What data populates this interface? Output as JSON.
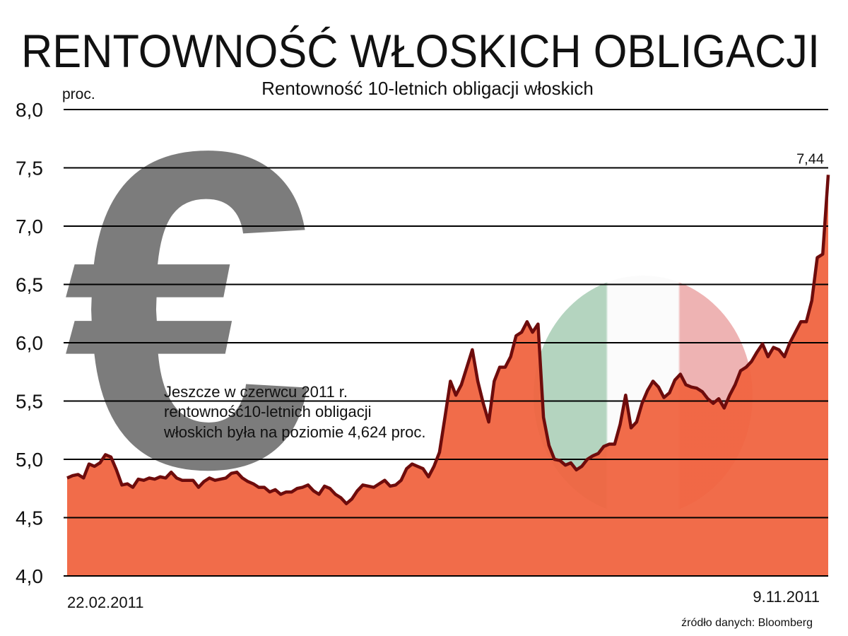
{
  "chart_data": {
    "type": "area",
    "title": "RENTOWNOŚĆ WŁOSKICH OBLIGACJI",
    "subtitle": "Rentowność 10-letnich obligacji włoskich",
    "y_label": "proc.",
    "annotation": [
      "Jeszcze w czerwcu 2011 r.",
      "rentowność10-letnich obligacji",
      "włoskich była na poziomie 4,624 proc."
    ],
    "source": "źródło danych: Bloomberg",
    "categories": [
      "22.02.2011",
      null,
      null,
      null,
      null,
      null,
      null,
      null,
      null,
      null,
      null,
      null,
      null,
      null,
      null,
      null,
      null,
      null,
      null,
      null,
      null,
      null,
      null,
      null,
      null,
      null,
      null,
      null,
      null,
      null,
      null,
      null,
      null,
      null,
      null,
      null,
      null,
      null,
      null,
      null,
      null,
      null,
      null,
      null,
      null,
      null,
      null,
      null,
      null,
      null,
      null,
      null,
      null,
      null,
      null,
      null,
      null,
      null,
      null,
      null,
      null,
      null,
      null,
      null,
      null,
      null,
      null,
      null,
      null,
      null,
      null,
      null,
      null,
      null,
      null,
      null,
      null,
      null,
      null,
      null,
      null,
      null,
      null,
      null,
      null,
      null,
      null,
      null,
      null,
      null,
      null,
      null,
      null,
      null,
      null,
      null,
      null,
      null,
      null,
      null,
      null,
      null,
      null,
      null,
      null,
      null,
      null,
      null,
      null,
      null,
      null,
      null,
      null,
      null,
      null,
      null,
      null,
      null,
      null,
      null,
      null,
      null,
      null,
      null,
      null,
      null,
      null,
      null,
      null,
      null,
      null,
      null,
      null,
      null,
      null,
      null,
      null,
      null,
      null,
      "9.11.2011"
    ],
    "values": [
      4.84,
      4.86,
      4.87,
      4.84,
      4.96,
      4.94,
      4.97,
      5.04,
      5.02,
      4.91,
      4.78,
      4.79,
      4.76,
      4.83,
      4.82,
      4.84,
      4.83,
      4.85,
      4.84,
      4.89,
      4.84,
      4.82,
      4.82,
      4.82,
      4.76,
      4.81,
      4.84,
      4.82,
      4.83,
      4.84,
      4.88,
      4.89,
      4.84,
      4.81,
      4.79,
      4.76,
      4.76,
      4.72,
      4.74,
      4.7,
      4.72,
      4.72,
      4.75,
      4.76,
      4.78,
      4.73,
      4.7,
      4.77,
      4.75,
      4.7,
      4.67,
      4.62,
      4.66,
      4.73,
      4.78,
      4.77,
      4.76,
      4.79,
      4.82,
      4.77,
      4.78,
      4.82,
      4.92,
      4.96,
      4.94,
      4.92,
      4.85,
      4.94,
      5.06,
      5.36,
      5.67,
      5.55,
      5.64,
      5.79,
      5.94,
      5.67,
      5.48,
      5.32,
      5.67,
      5.79,
      5.79,
      5.88,
      6.06,
      6.09,
      6.18,
      6.09,
      6.16,
      5.36,
      5.12,
      5.0,
      4.99,
      4.95,
      4.97,
      4.91,
      4.94,
      5.0,
      5.03,
      5.05,
      5.11,
      5.13,
      5.13,
      5.3,
      5.55,
      5.27,
      5.32,
      5.48,
      5.59,
      5.67,
      5.62,
      5.53,
      5.57,
      5.68,
      5.73,
      5.64,
      5.62,
      5.61,
      5.58,
      5.52,
      5.48,
      5.52,
      5.44,
      5.55,
      5.64,
      5.76,
      5.79,
      5.84,
      5.92,
      5.99,
      5.88,
      5.96,
      5.94,
      5.88,
      6.0,
      6.09,
      6.18,
      6.18,
      6.36,
      6.73,
      6.76,
      7.44
    ],
    "value_labels": [
      null,
      null,
      null,
      null,
      null,
      null,
      null,
      null,
      null,
      null,
      null,
      null,
      null,
      null,
      null,
      null,
      null,
      null,
      null,
      null,
      null,
      null,
      null,
      null,
      null,
      null,
      null,
      null,
      null,
      null,
      null,
      null,
      null,
      null,
      null,
      null,
      null,
      null,
      null,
      null,
      null,
      null,
      null,
      null,
      null,
      null,
      null,
      null,
      null,
      null,
      null,
      null,
      null,
      null,
      null,
      null,
      null,
      null,
      null,
      null,
      null,
      null,
      null,
      null,
      null,
      null,
      null,
      null,
      null,
      null,
      null,
      null,
      null,
      null,
      null,
      null,
      null,
      null,
      null,
      null,
      null,
      null,
      null,
      null,
      null,
      null,
      null,
      null,
      null,
      null,
      null,
      null,
      null,
      null,
      null,
      null,
      null,
      null,
      null,
      null,
      null,
      null,
      null,
      null,
      null,
      null,
      null,
      null,
      null,
      null,
      null,
      null,
      null,
      null,
      null,
      null,
      null,
      null,
      null,
      null,
      null,
      null,
      null,
      null,
      null,
      null,
      null,
      null,
      null,
      null,
      null,
      null,
      null,
      null,
      null,
      null,
      null,
      null,
      null,
      "7,44"
    ],
    "fill_color": "#f06440",
    "line_color": "#6e0c0c",
    "ylim": [
      4,
      8
    ],
    "yticks": [
      {
        "value": 4,
        "label": "4,0"
      },
      {
        "value": 4.5,
        "label": "4,5"
      },
      {
        "value": 5,
        "label": "5,0"
      },
      {
        "value": 5.5,
        "label": "5,5"
      },
      {
        "value": 6,
        "label": "6,0"
      },
      {
        "value": 6.5,
        "label": "6,5"
      },
      {
        "value": 7,
        "label": "7,0"
      },
      {
        "value": 7.5,
        "label": "7,5"
      },
      {
        "value": 8,
        "label": "8,0"
      }
    ],
    "grid": true
  }
}
